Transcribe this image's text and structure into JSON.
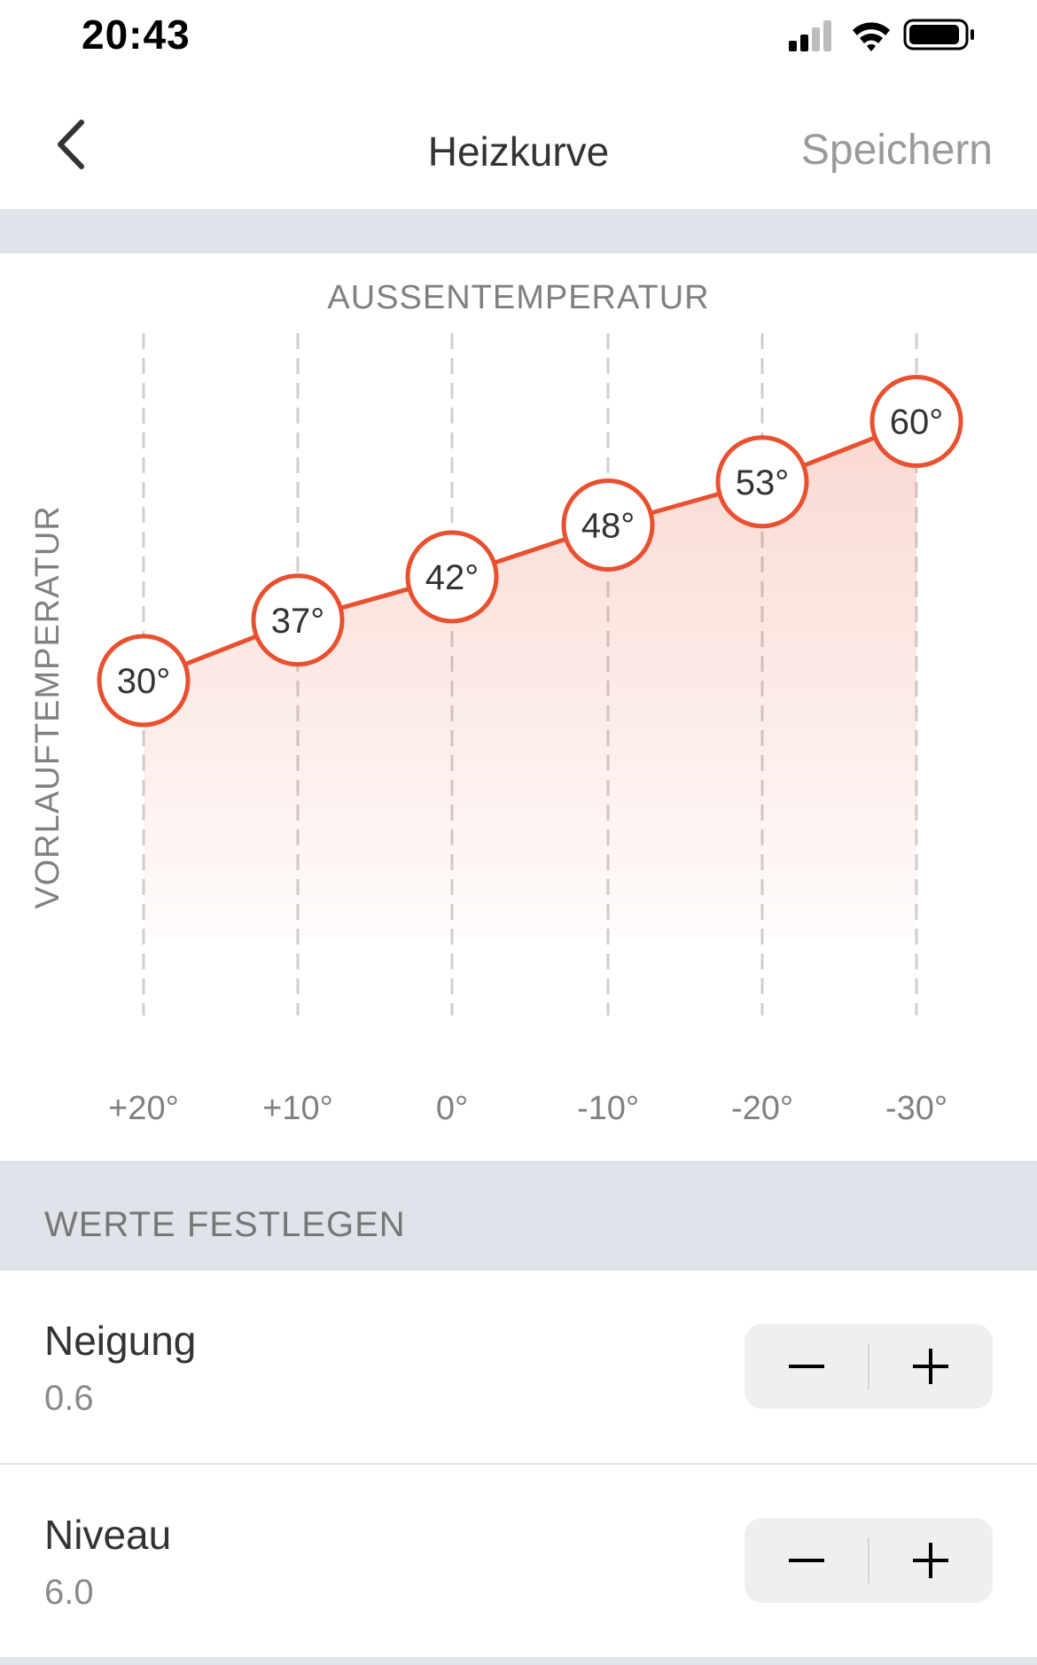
{
  "status_bar": {
    "time": "20:43",
    "icons": [
      "cellular-signal-icon",
      "wifi-icon",
      "battery-icon"
    ]
  },
  "nav": {
    "back_icon": "chevron-left-icon",
    "title": "Heizkurve",
    "save_label": "Speichern"
  },
  "chart_data": {
    "type": "line",
    "title": "",
    "xlabel": "AUSSENTEMPERATUR",
    "ylabel": "VORLAUFTEMPERATUR",
    "categories": [
      "+20°",
      "+10°",
      "0°",
      "-10°",
      "-20°",
      "-30°"
    ],
    "x": [
      20,
      10,
      0,
      -10,
      -20,
      -30
    ],
    "series": [
      {
        "values": [
          30,
          37,
          42,
          48,
          53,
          60
        ],
        "labels": [
          "30°",
          "37°",
          "42°",
          "48°",
          "53°",
          "60°"
        ]
      }
    ],
    "grid": "vertical-dashed",
    "area_fill": true,
    "color": "#e8502f"
  },
  "settings": {
    "section_title": "WERTE FESTLEGEN",
    "rows": [
      {
        "label": "Neigung",
        "value": "0.6"
      },
      {
        "label": "Niveau",
        "value": "6.0"
      }
    ],
    "minus_icon": "minus-icon",
    "plus_icon": "plus-icon"
  }
}
